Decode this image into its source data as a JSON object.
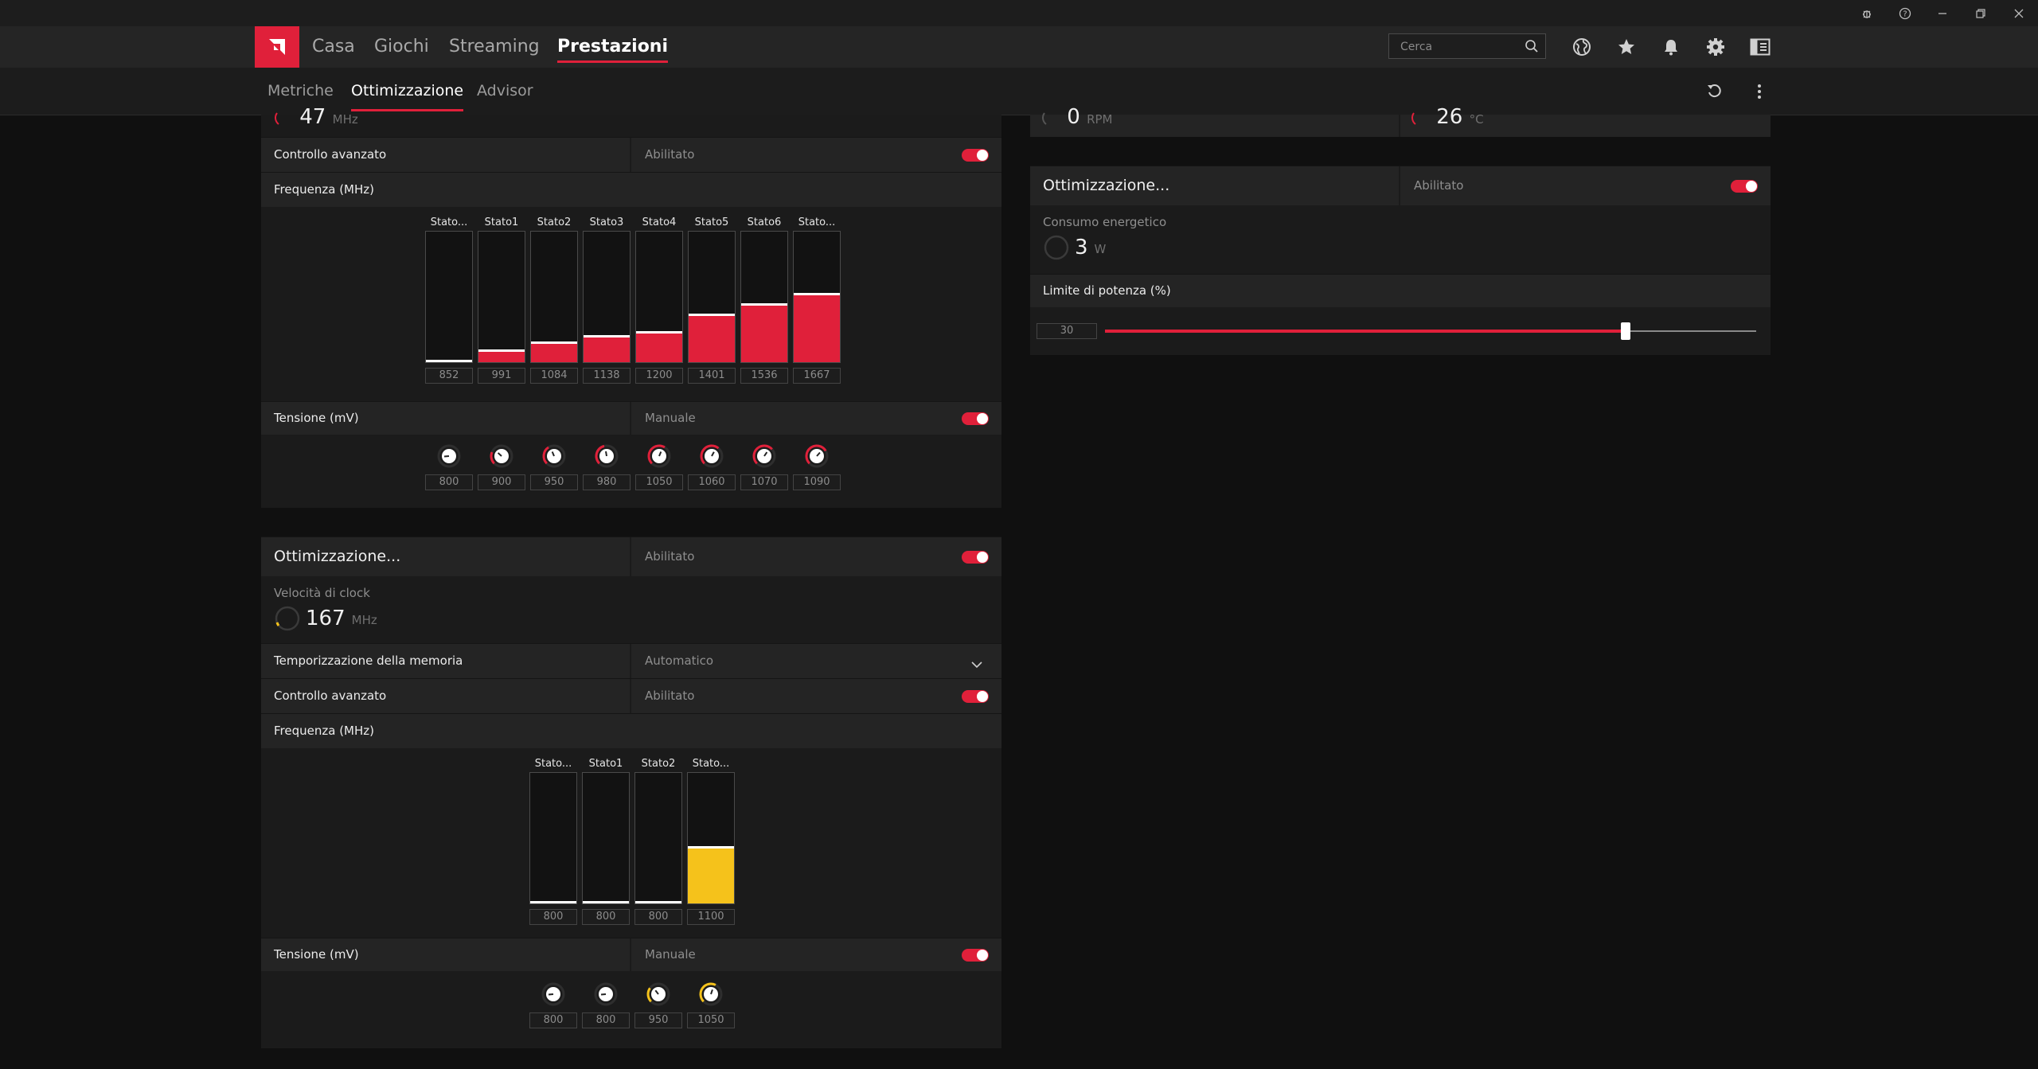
{
  "window": {
    "controls": [
      "bug-icon",
      "help-icon",
      "minimize-icon",
      "restore-icon",
      "close-icon"
    ]
  },
  "nav": {
    "tabs": [
      "Casa",
      "Giochi",
      "Streaming",
      "Prestazioni"
    ],
    "active": "Prestazioni",
    "search_placeholder": "Cerca"
  },
  "subnav": {
    "tabs": [
      "Metriche",
      "Ottimizzazione",
      "Advisor"
    ],
    "active": "Ottimizzazione"
  },
  "colors": {
    "accent": "#e0203a",
    "memory_accent": "#f5c21b"
  },
  "gpu_panel": {
    "partial_value": "47",
    "partial_unit": "MHz",
    "advanced_control": {
      "label": "Controllo avanzato",
      "value": "Abilitato",
      "enabled": true
    },
    "frequency": {
      "label": "Frequenza (MHz)",
      "states": [
        "Stato...",
        "Stato1",
        "Stato2",
        "Stato3",
        "Stato4",
        "Stato5",
        "Stato6",
        "Stato..."
      ],
      "values": [
        "852",
        "991",
        "1084",
        "1138",
        "1200",
        "1401",
        "1536",
        "1667"
      ],
      "levels": [
        0.02,
        0.1,
        0.16,
        0.21,
        0.24,
        0.37,
        0.45,
        0.53
      ]
    },
    "voltage": {
      "label": "Tensione (mV)",
      "value": "Manuale",
      "enabled": true,
      "values": [
        "800",
        "900",
        "950",
        "980",
        "1050",
        "1060",
        "1070",
        "1090"
      ],
      "levels": [
        0.0,
        0.25,
        0.38,
        0.45,
        0.62,
        0.65,
        0.68,
        0.72
      ]
    }
  },
  "memory_panel": {
    "title": "Ottimizzazione...",
    "status": "Abilitato",
    "enabled": true,
    "clock_label": "Velocità di clock",
    "clock_value": "167",
    "clock_unit": "MHz",
    "timing": {
      "label": "Temporizzazione della memoria",
      "value": "Automatico"
    },
    "advanced_control": {
      "label": "Controllo avanzato",
      "value": "Abilitato",
      "enabled": true
    },
    "frequency": {
      "label": "Frequenza (MHz)",
      "states": [
        "Stato...",
        "Stato1",
        "Stato2",
        "Stato..."
      ],
      "values": [
        "800",
        "800",
        "800",
        "1100"
      ],
      "levels": [
        0.02,
        0.02,
        0.02,
        0.44
      ]
    },
    "voltage": {
      "label": "Tensione (mV)",
      "value": "Manuale",
      "enabled": true,
      "values": [
        "800",
        "800",
        "950",
        "1050"
      ],
      "levels": [
        0.0,
        0.0,
        0.3,
        0.6
      ]
    }
  },
  "fan_partial": {
    "value": "0",
    "unit": "RPM"
  },
  "temp_partial": {
    "value": "26",
    "unit": "°C"
  },
  "power_panel": {
    "title": "Ottimizzazione...",
    "status": "Abilitato",
    "enabled": true,
    "consumption_label": "Consumo energetico",
    "consumption_value": "3",
    "consumption_unit": "W",
    "power_limit": {
      "label": "Limite di potenza (%)",
      "value": "30",
      "level": 0.8
    }
  }
}
